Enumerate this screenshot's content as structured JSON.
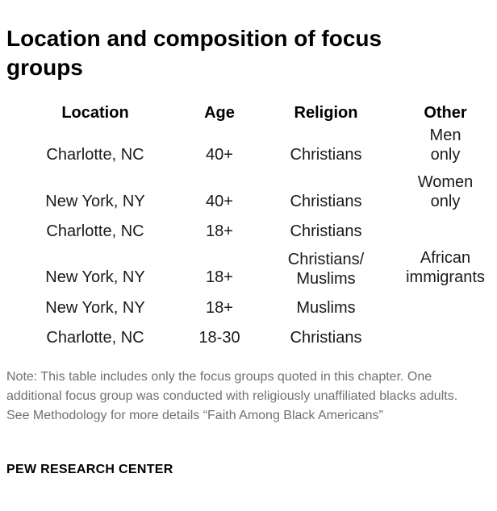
{
  "title": "Location and composition of focus groups",
  "table": {
    "headers": {
      "location": "Location",
      "age": "Age",
      "religion": "Religion",
      "other": "Other"
    },
    "rows": [
      {
        "location": "Charlotte, NC",
        "age": "40+",
        "religion": "Christians",
        "other": "Men\nonly"
      },
      {
        "location": "New York, NY",
        "age": "40+",
        "religion": "Christians",
        "other": "Women\nonly"
      },
      {
        "location": "Charlotte, NC",
        "age": "18+",
        "religion": "Christians",
        "other": ""
      },
      {
        "location": "New York, NY",
        "age": "18+",
        "religion": "Christians/\nMuslims",
        "other": "African\nimmigrants"
      },
      {
        "location": "New York, NY",
        "age": "18+",
        "religion": "Muslims",
        "other": ""
      },
      {
        "location": "Charlotte, NC",
        "age": "18-30",
        "religion": "Christians",
        "other": ""
      }
    ]
  },
  "note": "Note: This table includes only the focus groups quoted in this chapter. One additional focus group was conducted with religiously unaffiliated blacks adults. See Methodology for more details “Faith Among Black Americans”",
  "source": "PEW RESEARCH CENTER"
}
